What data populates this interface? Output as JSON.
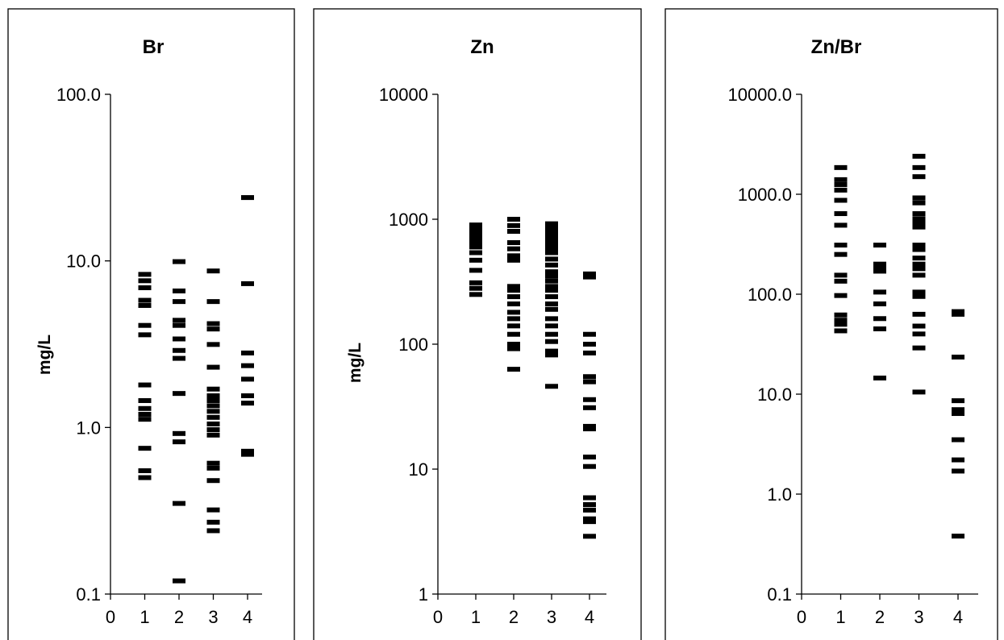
{
  "chart_data": [
    {
      "type": "scatter",
      "title": "Br",
      "ylabel": "mg/L",
      "xlabel": "",
      "y_scale": "log",
      "ylim": [
        0.1,
        100
      ],
      "y_ticks": [
        "0.1",
        "1.0",
        "10.0",
        "100.0"
      ],
      "x_ticks": [
        "0",
        "1",
        "2",
        "3",
        "4"
      ],
      "xlim": [
        0,
        4.5
      ],
      "series": [
        {
          "x": 1,
          "values": [
            8.3,
            7.6,
            6.9,
            5.8,
            5.4,
            4.1,
            3.6,
            1.8,
            1.45,
            1.3,
            1.2,
            1.12,
            0.75,
            0.55,
            0.5
          ]
        },
        {
          "x": 2,
          "values": [
            9.9,
            6.6,
            5.7,
            4.4,
            4.1,
            3.4,
            2.9,
            2.6,
            1.6,
            0.92,
            0.82,
            0.35,
            0.12
          ]
        },
        {
          "x": 3,
          "values": [
            8.7,
            5.7,
            4.2,
            3.9,
            3.15,
            2.3,
            1.7,
            1.55,
            1.45,
            1.35,
            1.25,
            1.15,
            1.05,
            0.97,
            0.9,
            0.61,
            0.57,
            0.48,
            0.32,
            0.27,
            0.24
          ]
        },
        {
          "x": 4,
          "values": [
            24,
            7.3,
            2.8,
            2.35,
            1.95,
            1.55,
            1.4,
            0.72,
            0.69
          ]
        }
      ]
    },
    {
      "type": "scatter",
      "title": "Zn",
      "ylabel": "mg/L",
      "xlabel": "",
      "y_scale": "log",
      "ylim": [
        1,
        10000
      ],
      "y_ticks": [
        "1",
        "10",
        "100",
        "1000",
        "10000"
      ],
      "x_ticks": [
        "0",
        "1",
        "2",
        "3",
        "4"
      ],
      "xlim": [
        0,
        4.5
      ],
      "series": [
        {
          "x": 1,
          "values": [
            900,
            830,
            760,
            700,
            650,
            600,
            540,
            470,
            390,
            310,
            280,
            250
          ]
        },
        {
          "x": 2,
          "values": [
            1000,
            890,
            800,
            650,
            580,
            510,
            470,
            290,
            270,
            240,
            210,
            180,
            160,
            140,
            120,
            100,
            92,
            63
          ]
        },
        {
          "x": 3,
          "values": [
            920,
            850,
            790,
            740,
            690,
            640,
            590,
            540,
            480,
            430,
            380,
            350,
            320,
            290,
            270,
            240,
            210,
            190,
            160,
            140,
            120,
            105,
            88,
            82,
            46
          ]
        },
        {
          "x": 4,
          "values": [
            365,
            345,
            120,
            100,
            85,
            55,
            50,
            36,
            31,
            22,
            21,
            12.5,
            10.5,
            5.9,
            5.2,
            4.7,
            4.0,
            3.8,
            2.9
          ]
        }
      ]
    },
    {
      "type": "scatter",
      "title": "Zn/Br",
      "ylabel": "",
      "xlabel": "",
      "y_scale": "log",
      "ylim": [
        0.1,
        10000
      ],
      "y_ticks": [
        "0.1",
        "1.0",
        "10.0",
        "100.0",
        "1000.0",
        "10000.0"
      ],
      "x_ticks": [
        "0",
        "1",
        "2",
        "3",
        "4"
      ],
      "xlim": [
        0,
        4.5
      ],
      "series": [
        {
          "x": 1,
          "values": [
            1850,
            1400,
            1250,
            1100,
            870,
            640,
            490,
            310,
            250,
            155,
            135,
            97,
            62,
            55,
            50,
            43
          ]
        },
        {
          "x": 2,
          "values": [
            310,
            200,
            185,
            170,
            105,
            80,
            57,
            45,
            14.5
          ]
        },
        {
          "x": 3,
          "values": [
            2400,
            1850,
            1500,
            920,
            820,
            640,
            570,
            520,
            470,
            310,
            280,
            230,
            200,
            180,
            155,
            105,
            95,
            63,
            48,
            40,
            29,
            10.5
          ]
        },
        {
          "x": 4,
          "values": [
            67,
            63,
            23.5,
            8.6,
            7.0,
            6.4,
            3.5,
            2.2,
            1.7,
            0.38
          ]
        }
      ]
    }
  ]
}
